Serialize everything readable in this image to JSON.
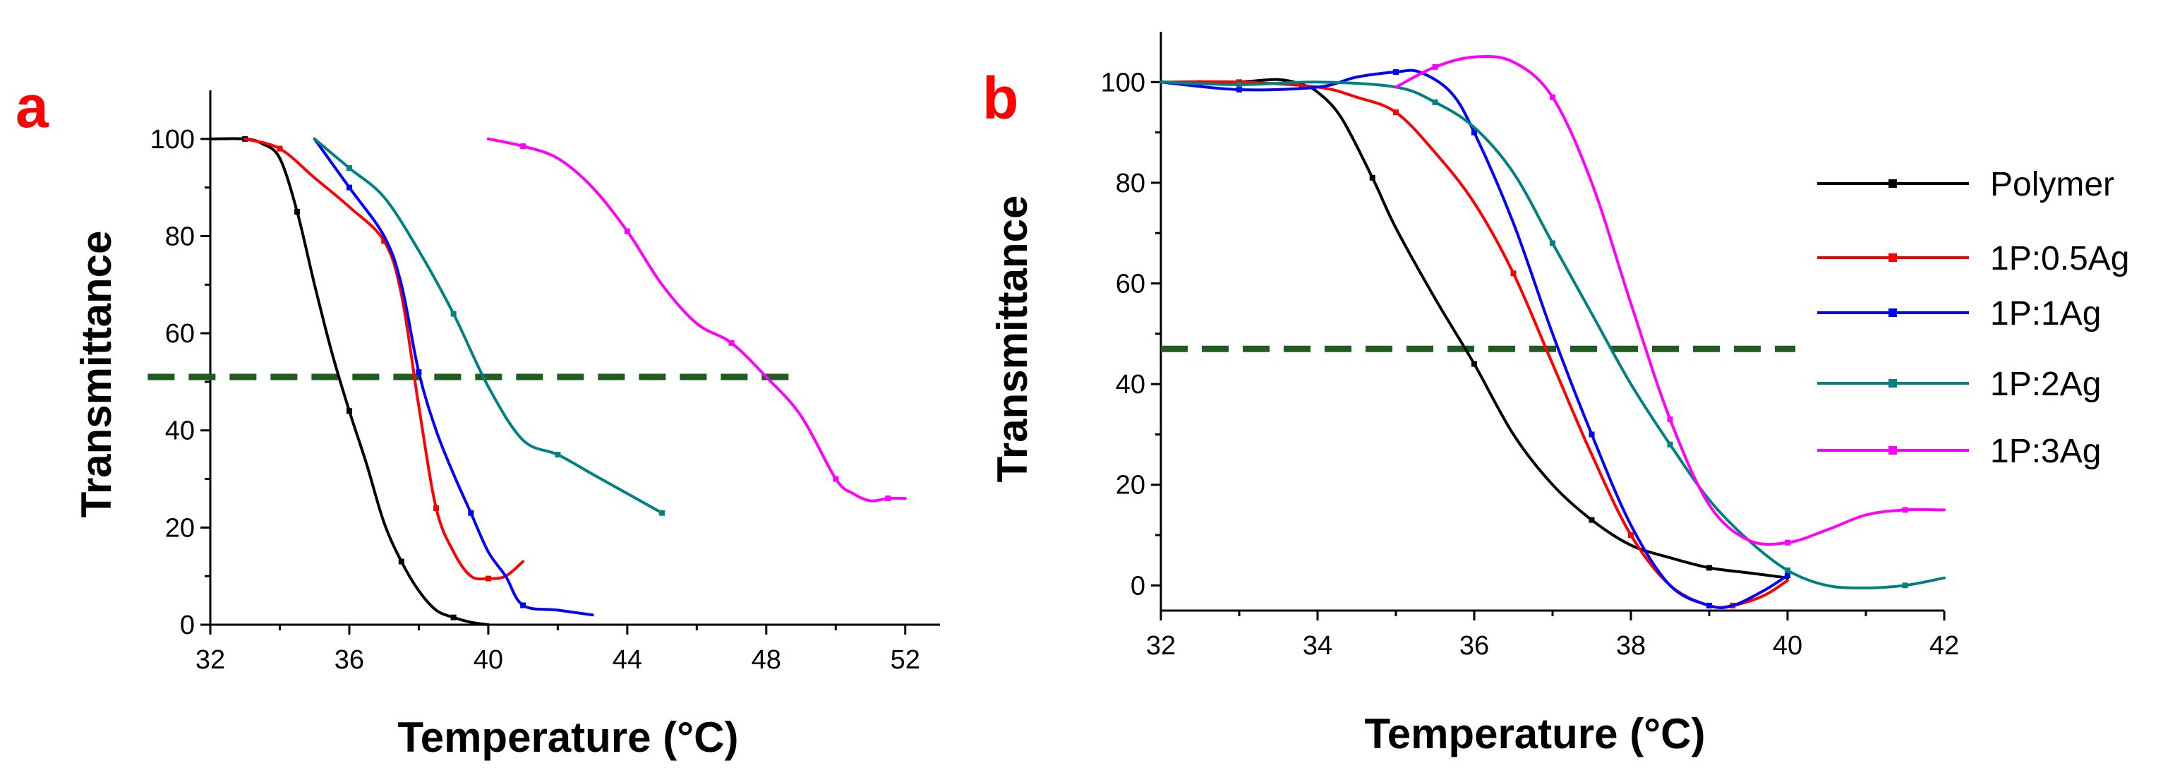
{
  "legend": [
    "Polymer",
    "1P:0.5Ag",
    "1P:1Ag",
    "1P:2Ag",
    "1P:3Ag"
  ],
  "colors": {
    "Polymer": "#000000",
    "1P:0.5Ag": "#ff0000",
    "1P:1Ag": "#0000ff",
    "1P:2Ag": "#008080",
    "1P:3Ag": "#ff00ff",
    "reference": "#1f5c1f",
    "panel_label": "#ff0000"
  },
  "chart_data": [
    {
      "id": "a",
      "panel_label": "a",
      "type": "line",
      "xlabel": "Temperature (°C)",
      "ylabel": "Transmittance",
      "xlim": [
        32,
        53
      ],
      "ylim": [
        0,
        110
      ],
      "xticks": [
        32,
        36,
        40,
        44,
        48,
        52
      ],
      "yticks": [
        0,
        20,
        40,
        60,
        80,
        100
      ],
      "reference_line": {
        "y": 51,
        "x_range": [
          30.2,
          48.8
        ]
      },
      "series": [
        {
          "name": "Polymer",
          "points": [
            [
              32,
              100
            ],
            [
              33,
              100
            ],
            [
              33.5,
              99
            ],
            [
              34,
              96
            ],
            [
              34.5,
              85
            ],
            [
              35,
              70
            ],
            [
              35.5,
              56
            ],
            [
              36,
              44
            ],
            [
              36.5,
              33
            ],
            [
              37,
              21
            ],
            [
              37.5,
              13
            ],
            [
              38,
              7
            ],
            [
              38.5,
              3
            ],
            [
              39,
              1.5
            ],
            [
              39.5,
              0.5
            ],
            [
              40,
              0
            ]
          ]
        },
        {
          "name": "1P:0.5Ag",
          "points": [
            [
              33,
              100
            ],
            [
              34,
              98
            ],
            [
              35,
              92
            ],
            [
              36,
              86
            ],
            [
              37,
              79
            ],
            [
              37.5,
              68
            ],
            [
              38,
              45
            ],
            [
              38.5,
              24
            ],
            [
              39,
              15
            ],
            [
              39.5,
              10
            ],
            [
              40,
              9.5
            ],
            [
              40.5,
              10
            ],
            [
              41,
              13
            ]
          ]
        },
        {
          "name": "1P:1Ag",
          "points": [
            [
              35,
              100
            ],
            [
              36,
              90
            ],
            [
              37,
              80
            ],
            [
              37.5,
              70
            ],
            [
              38,
              52
            ],
            [
              38.5,
              40
            ],
            [
              39,
              31
            ],
            [
              39.5,
              23
            ],
            [
              40,
              15
            ],
            [
              40.5,
              10
            ],
            [
              41,
              4
            ],
            [
              42,
              3
            ],
            [
              43,
              2
            ]
          ]
        },
        {
          "name": "1P:2Ag",
          "points": [
            [
              35,
              100
            ],
            [
              36,
              94
            ],
            [
              37,
              88
            ],
            [
              38,
              77
            ],
            [
              39,
              64
            ],
            [
              40,
              49
            ],
            [
              41,
              38
            ],
            [
              42,
              35
            ],
            [
              43,
              31
            ],
            [
              44,
              27
            ],
            [
              45,
              23
            ]
          ]
        },
        {
          "name": "1P:3Ag",
          "points": [
            [
              40,
              100
            ],
            [
              41,
              98.5
            ],
            [
              42,
              96
            ],
            [
              43,
              90
            ],
            [
              44,
              81
            ],
            [
              45,
              70
            ],
            [
              46,
              62
            ],
            [
              47,
              58
            ],
            [
              48,
              51
            ],
            [
              49,
              43
            ],
            [
              50,
              30
            ],
            [
              50.5,
              27
            ],
            [
              51,
              25.5
            ],
            [
              51.5,
              26
            ],
            [
              52,
              26
            ]
          ]
        }
      ]
    },
    {
      "id": "b",
      "panel_label": "b",
      "type": "line",
      "xlabel": "Temperature (°C)",
      "ylabel": "Transmittance",
      "xlim": [
        32,
        42
      ],
      "ylim": [
        -5,
        110
      ],
      "xticks": [
        32,
        34,
        36,
        38,
        40,
        42
      ],
      "yticks": [
        0,
        20,
        40,
        60,
        80,
        100
      ],
      "reference_line": {
        "y": 47,
        "x_range": [
          32,
          40.1
        ]
      },
      "series": [
        {
          "name": "Polymer",
          "points": [
            [
              32,
              100
            ],
            [
              32.5,
              99.8
            ],
            [
              33,
              100
            ],
            [
              33.5,
              100.5
            ],
            [
              33.8,
              99.5
            ],
            [
              34,
              98
            ],
            [
              34.3,
              93
            ],
            [
              34.7,
              81
            ],
            [
              35,
              71
            ],
            [
              35.5,
              57
            ],
            [
              36,
              44
            ],
            [
              36.5,
              30
            ],
            [
              37,
              20
            ],
            [
              37.5,
              13
            ],
            [
              38,
              8
            ],
            [
              38.5,
              5.5
            ],
            [
              39,
              3.5
            ],
            [
              39.5,
              2.5
            ],
            [
              40,
              1.5
            ]
          ]
        },
        {
          "name": "1P:0.5Ag",
          "points": [
            [
              32,
              100
            ],
            [
              33,
              100
            ],
            [
              34,
              99
            ],
            [
              34.5,
              97
            ],
            [
              35,
              94
            ],
            [
              35.5,
              86
            ],
            [
              36,
              76
            ],
            [
              36.5,
              62
            ],
            [
              37,
              44
            ],
            [
              37.5,
              26
            ],
            [
              38,
              10
            ],
            [
              38.5,
              0
            ],
            [
              39,
              -4
            ],
            [
              39.3,
              -4
            ],
            [
              39.7,
              -2
            ],
            [
              40,
              1
            ]
          ]
        },
        {
          "name": "1P:1Ag",
          "points": [
            [
              32,
              100
            ],
            [
              33,
              98.5
            ],
            [
              34,
              99
            ],
            [
              34.5,
              101
            ],
            [
              35,
              102
            ],
            [
              35.3,
              102
            ],
            [
              35.7,
              98
            ],
            [
              36,
              90
            ],
            [
              36.5,
              72
            ],
            [
              37,
              50
            ],
            [
              37.5,
              30
            ],
            [
              38,
              12
            ],
            [
              38.5,
              0
            ],
            [
              39,
              -4
            ],
            [
              39.3,
              -4
            ],
            [
              39.7,
              -1
            ],
            [
              40,
              2
            ]
          ]
        },
        {
          "name": "1P:2Ag",
          "points": [
            [
              32,
              100
            ],
            [
              33,
              99.5
            ],
            [
              34,
              100
            ],
            [
              35,
              99
            ],
            [
              35.5,
              96
            ],
            [
              36,
              91
            ],
            [
              36.5,
              82
            ],
            [
              37,
              68
            ],
            [
              37.5,
              54
            ],
            [
              38,
              40
            ],
            [
              38.5,
              28
            ],
            [
              39,
              17
            ],
            [
              39.5,
              9
            ],
            [
              40,
              3
            ],
            [
              40.5,
              0
            ],
            [
              41,
              -0.5
            ],
            [
              41.5,
              0
            ],
            [
              42,
              1.5
            ]
          ]
        },
        {
          "name": "1P:3Ag",
          "points": [
            [
              35,
              99
            ],
            [
              35.5,
              103
            ],
            [
              36,
              105
            ],
            [
              36.5,
              104
            ],
            [
              37,
              97
            ],
            [
              37.5,
              80
            ],
            [
              38,
              56
            ],
            [
              38.5,
              33
            ],
            [
              39,
              16
            ],
            [
              39.5,
              9
            ],
            [
              40,
              8.5
            ],
            [
              40.5,
              11
            ],
            [
              41,
              14
            ],
            [
              41.5,
              15
            ],
            [
              42,
              15
            ]
          ]
        }
      ]
    }
  ]
}
